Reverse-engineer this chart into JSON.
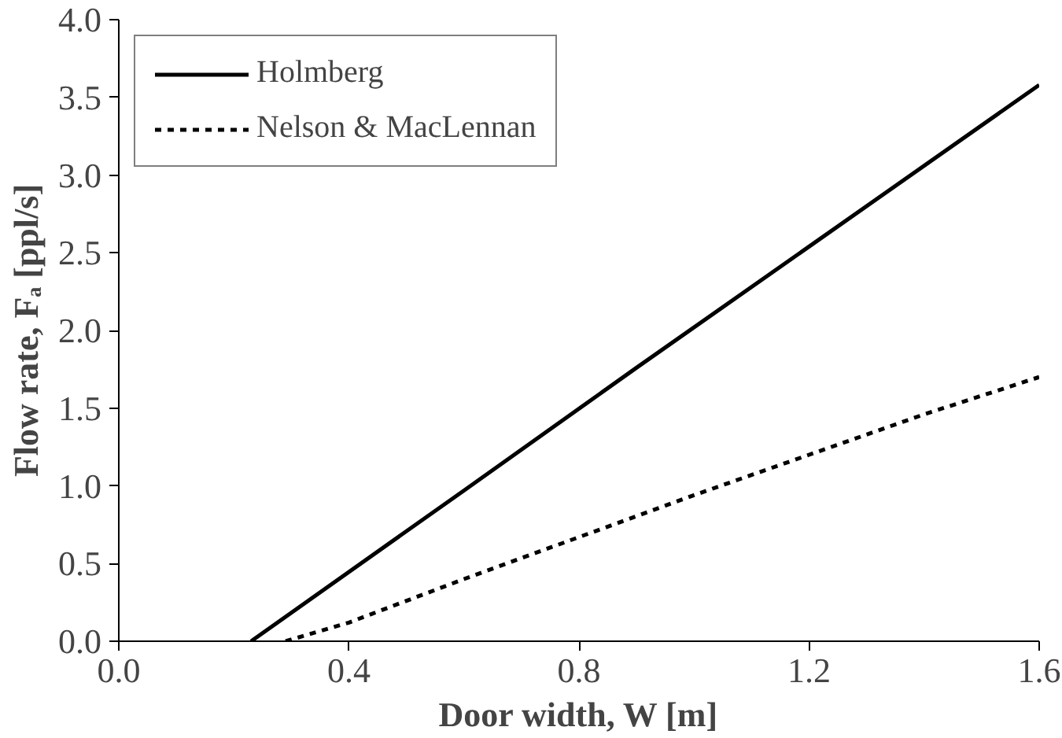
{
  "chart_data": {
    "type": "line",
    "xlabel": "Door width, W [m]",
    "ylabel": "Flow rate, Fₐ [ppl/s]",
    "xlim": [
      0,
      1.6
    ],
    "ylim": [
      0,
      4
    ],
    "xticks": [
      {
        "value": 0,
        "label": "0.0"
      },
      {
        "value": 0.4,
        "label": "0.4"
      },
      {
        "value": 0.8,
        "label": "0.8"
      },
      {
        "value": 1.2,
        "label": "1.2"
      },
      {
        "value": 1.6,
        "label": "1.6"
      }
    ],
    "yticks": [
      {
        "value": 0,
        "label": "0.0"
      },
      {
        "value": 0.5,
        "label": "0.5"
      },
      {
        "value": 1,
        "label": "1.0"
      },
      {
        "value": 1.5,
        "label": "1.5"
      },
      {
        "value": 2,
        "label": "2.0"
      },
      {
        "value": 2.5,
        "label": "2.5"
      },
      {
        "value": 3,
        "label": "3.0"
      },
      {
        "value": 3.5,
        "label": "3.5"
      },
      {
        "value": 4,
        "label": "4.0"
      }
    ],
    "series": [
      {
        "name": "Holmberg",
        "color": "#000000",
        "line_style": "solid",
        "x": [
          0.23,
          0.6,
          0.9,
          1.2,
          1.6
        ],
        "values": [
          0,
          0.97,
          1.76,
          2.54,
          3.58
        ]
      },
      {
        "name": "Nelson & MacLennan",
        "color": "#000000",
        "line_style": "dotted",
        "x": [
          0.29,
          0.4,
          0.6,
          0.8,
          1.0,
          1.2,
          1.4,
          1.6
        ],
        "values": [
          0,
          0.12,
          0.4,
          0.67,
          0.94,
          1.2,
          1.46,
          1.7
        ]
      }
    ],
    "legend": "top left",
    "grid": false
  }
}
